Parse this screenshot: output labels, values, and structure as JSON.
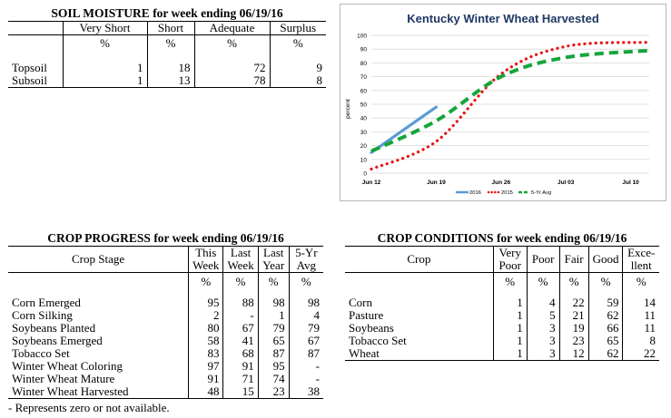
{
  "soil_moisture": {
    "title": "SOIL MOISTURE for week ending 06/19/16",
    "columns": [
      "Very Short",
      "Short",
      "Adequate",
      "Surplus"
    ],
    "units": [
      "%",
      "%",
      "%",
      "%"
    ],
    "rows": [
      {
        "label": "Topsoil",
        "values": [
          "1",
          "18",
          "72",
          "9"
        ]
      },
      {
        "label": "Subsoil",
        "values": [
          "1",
          "13",
          "78",
          "8"
        ]
      }
    ]
  },
  "crop_progress": {
    "title": "CROP PROGRESS for week ending 06/19/16",
    "stage_header": "Crop Stage",
    "columns": [
      {
        "line1": "This",
        "line2": "Week"
      },
      {
        "line1": "Last",
        "line2": "Week"
      },
      {
        "line1": "Last",
        "line2": "Year"
      },
      {
        "line1": "5-Yr",
        "line2": "Avg"
      }
    ],
    "units": [
      "%",
      "%",
      "%",
      "%"
    ],
    "rows": [
      {
        "label": "Corn Emerged",
        "values": [
          "95",
          "88",
          "98",
          "98"
        ]
      },
      {
        "label": "Corn Silking",
        "values": [
          "2",
          "-",
          "1",
          "4"
        ]
      },
      {
        "label": "Soybeans Planted",
        "values": [
          "80",
          "67",
          "79",
          "79"
        ]
      },
      {
        "label": "Soybeans Emerged",
        "values": [
          "58",
          "41",
          "65",
          "67"
        ]
      },
      {
        "label": "Tobacco Set",
        "values": [
          "83",
          "68",
          "87",
          "87"
        ]
      },
      {
        "label": "Winter Wheat Coloring",
        "values": [
          "97",
          "91",
          "95",
          "-"
        ]
      },
      {
        "label": "Winter Wheat Mature",
        "values": [
          "91",
          "71",
          "74",
          "-"
        ]
      },
      {
        "label": "Winter Wheat Harvested",
        "values": [
          "48",
          "15",
          "23",
          "38"
        ]
      }
    ],
    "footnote": "- Represents zero or not available."
  },
  "crop_conditions": {
    "title": "CROP CONDITIONS for week ending 06/19/16",
    "crop_header": "Crop",
    "columns": [
      {
        "line1": "Very",
        "line2": "Poor"
      },
      {
        "line1": "Poor",
        "line2": ""
      },
      {
        "line1": "Fair",
        "line2": ""
      },
      {
        "line1": "Good",
        "line2": ""
      },
      {
        "line1": "Exce-",
        "line2": "llent"
      }
    ],
    "units": [
      "%",
      "%",
      "%",
      "%",
      "%"
    ],
    "rows": [
      {
        "label": "Corn",
        "values": [
          "1",
          "4",
          "22",
          "59",
          "14"
        ]
      },
      {
        "label": "Pasture",
        "values": [
          "1",
          "5",
          "21",
          "62",
          "11"
        ]
      },
      {
        "label": "Soybeans",
        "values": [
          "1",
          "3",
          "19",
          "66",
          "11"
        ]
      },
      {
        "label": "Tobacco Set",
        "values": [
          "1",
          "3",
          "23",
          "65",
          "8"
        ]
      },
      {
        "label": "Wheat",
        "values": [
          "1",
          "3",
          "12",
          "62",
          "22"
        ]
      }
    ]
  },
  "chart_data": {
    "type": "line",
    "title": "Kentucky Winter Wheat Harvested",
    "xlabel": "",
    "ylabel": "percent",
    "ylim": [
      0,
      100
    ],
    "yticks": [
      "0",
      "10",
      "20",
      "30",
      "40",
      "50",
      "60",
      "70",
      "80",
      "90",
      "100"
    ],
    "xlim": [
      0,
      30
    ],
    "xticks": [
      {
        "label": "Jun 12",
        "x": 0
      },
      {
        "label": "Jun 19",
        "x": 7
      },
      {
        "label": "Jun 26",
        "x": 14
      },
      {
        "label": "Jul 03",
        "x": 21
      },
      {
        "label": "Jul 10",
        "x": 28
      }
    ],
    "grid": true,
    "legend_position": "bottom",
    "series": [
      {
        "name": "2016",
        "color": "#5b9bd5",
        "style": "solid",
        "x": [
          0,
          7
        ],
        "y": [
          15,
          48
        ]
      },
      {
        "name": "2015",
        "color": "#e81010",
        "style": "dotted",
        "x": [
          0,
          7,
          14,
          21,
          30
        ],
        "y": [
          3,
          23,
          72,
          92,
          95
        ]
      },
      {
        "name": "5-Yr Avg",
        "color": "#17a53b",
        "style": "dashed",
        "x": [
          0,
          7,
          14,
          21,
          30
        ],
        "y": [
          16,
          38,
          70,
          84,
          89
        ]
      }
    ]
  }
}
